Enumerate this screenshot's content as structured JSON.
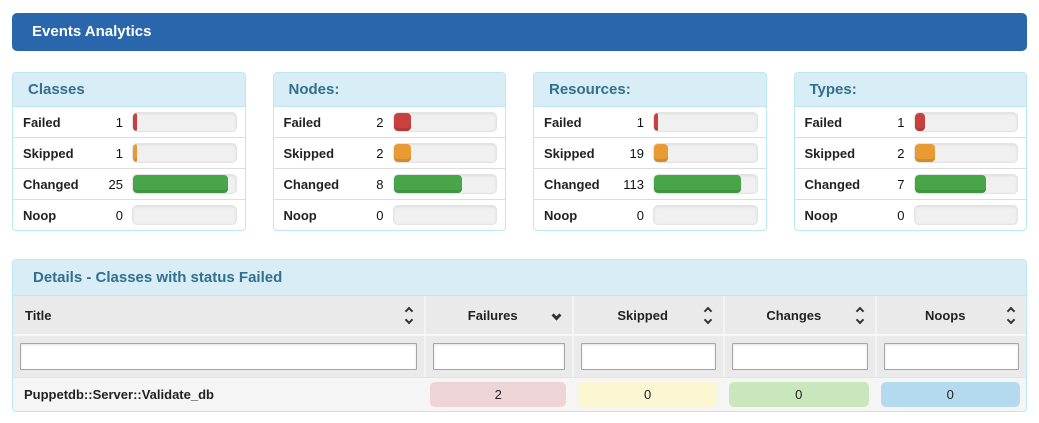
{
  "page_title": "Events Analytics",
  "colors": {
    "header_bg": "#2a66ac",
    "panel_heading_bg": "#d9edf7",
    "panel_heading_text": "#31708f",
    "panel_border": "#bce8f1",
    "bar_failed": "#c9413e",
    "bar_skipped": "#e89b33",
    "bar_changed": "#48a648",
    "bar_noop": "transparent",
    "badge_failures": "#eed3d7",
    "badge_skipped": "#fbf7d2",
    "badge_changes": "#cae6bd",
    "badge_noops": "#b4daf0"
  },
  "summary_panels": [
    {
      "title": "Classes",
      "rows": [
        {
          "label": "Failed",
          "value": "1",
          "percent": 4,
          "status": "failed"
        },
        {
          "label": "Skipped",
          "value": "1",
          "percent": 4,
          "status": "skipped"
        },
        {
          "label": "Changed",
          "value": "25",
          "percent": 93,
          "status": "changed"
        },
        {
          "label": "Noop",
          "value": "0",
          "percent": 0,
          "status": "noop"
        }
      ]
    },
    {
      "title": "Nodes:",
      "rows": [
        {
          "label": "Failed",
          "value": "2",
          "percent": 17,
          "status": "failed"
        },
        {
          "label": "Skipped",
          "value": "2",
          "percent": 17,
          "status": "skipped"
        },
        {
          "label": "Changed",
          "value": "8",
          "percent": 67,
          "status": "changed"
        },
        {
          "label": "Noop",
          "value": "0",
          "percent": 0,
          "status": "noop"
        }
      ]
    },
    {
      "title": "Resources:",
      "rows": [
        {
          "label": "Failed",
          "value": "1",
          "percent": 1,
          "status": "failed"
        },
        {
          "label": "Skipped",
          "value": "19",
          "percent": 14,
          "status": "skipped"
        },
        {
          "label": "Changed",
          "value": "113",
          "percent": 85,
          "status": "changed"
        },
        {
          "label": "Noop",
          "value": "0",
          "percent": 0,
          "status": "noop"
        }
      ]
    },
    {
      "title": "Types:",
      "rows": [
        {
          "label": "Failed",
          "value": "1",
          "percent": 10,
          "status": "failed"
        },
        {
          "label": "Skipped",
          "value": "2",
          "percent": 20,
          "status": "skipped"
        },
        {
          "label": "Changed",
          "value": "7",
          "percent": 70,
          "status": "changed"
        },
        {
          "label": "Noop",
          "value": "0",
          "percent": 0,
          "status": "noop"
        }
      ]
    }
  ],
  "details": {
    "title": "Details - Classes with status Failed",
    "columns": [
      {
        "label": "Title",
        "key": "title",
        "sort": "both",
        "filter_value": ""
      },
      {
        "label": "Failures",
        "key": "failures",
        "sort": "desc",
        "filter_value": ""
      },
      {
        "label": "Skipped",
        "key": "skipped",
        "sort": "both",
        "filter_value": ""
      },
      {
        "label": "Changes",
        "key": "changes",
        "sort": "both",
        "filter_value": ""
      },
      {
        "label": "Noops",
        "key": "noops",
        "sort": "both",
        "filter_value": ""
      }
    ],
    "rows": [
      {
        "title": "Puppetdb::Server::Validate_db",
        "failures": "2",
        "skipped": "0",
        "changes": "0",
        "noops": "0"
      }
    ]
  }
}
